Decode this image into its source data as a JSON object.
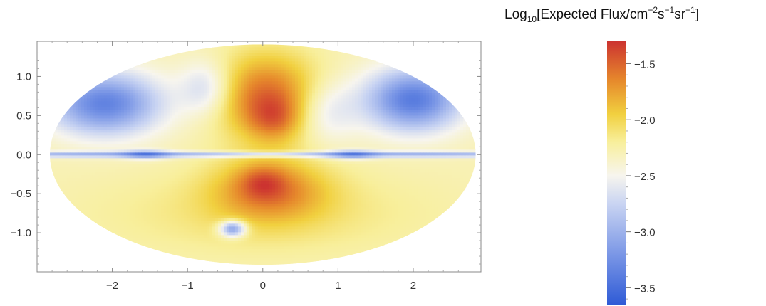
{
  "chart_data": {
    "type": "heatmap",
    "projection": "Mollweide-like ellipse (all-sky map)",
    "title": "",
    "xlabel": "",
    "ylabel": "",
    "xlim": [
      -3.0,
      2.9
    ],
    "ylim": [
      -1.5,
      1.45
    ],
    "x_ticks": [
      -2,
      -1,
      0,
      1,
      2
    ],
    "x_tick_labels": [
      "−2",
      "−1",
      "0",
      "1",
      "2"
    ],
    "y_ticks": [
      1.0,
      0.5,
      0.0,
      -0.5,
      -1.0
    ],
    "y_tick_labels": [
      "1.0",
      "0.5",
      "0.0",
      "−0.5",
      "−1.0"
    ],
    "ellipse": {
      "x_semi_axis": 2.83,
      "y_semi_axis": 1.41,
      "center": [
        0,
        0
      ]
    },
    "grid": false,
    "colorbar": {
      "title_parts": [
        "Log",
        "10",
        "[Expected Flux/cm",
        "−2",
        "s",
        "−1",
        "sr",
        "−1",
        "]"
      ],
      "range": [
        -3.65,
        -1.3
      ],
      "ticks": [
        -1.5,
        -2.0,
        -2.5,
        -3.0,
        -3.5
      ],
      "tick_labels": [
        "−1.5",
        "−2.0",
        "−2.5",
        "−3.0",
        "−3.5"
      ],
      "colormap": [
        {
          "value": -3.65,
          "color": "#2f5bd6"
        },
        {
          "value": -3.2,
          "color": "#7b97e6"
        },
        {
          "value": -2.75,
          "color": "#c9d4f2"
        },
        {
          "value": -2.5,
          "color": "#f7f5ee"
        },
        {
          "value": -2.2,
          "color": "#f8ef9c"
        },
        {
          "value": -1.95,
          "color": "#f1d03f"
        },
        {
          "value": -1.65,
          "color": "#e6892c"
        },
        {
          "value": -1.3,
          "color": "#cc3330"
        }
      ],
      "legend_placement": "right"
    },
    "features": [
      {
        "name": "baseline",
        "value": -2.3
      },
      {
        "name": "upper-bubble",
        "x": 0.05,
        "y": 0.75,
        "sx": 0.7,
        "sy": 0.55,
        "value": 0.75
      },
      {
        "name": "upper-core",
        "x": 0.15,
        "y": 0.45,
        "sx": 0.35,
        "sy": 0.28,
        "value": 0.35
      },
      {
        "name": "lower-bubble",
        "x": 0.1,
        "y": -0.45,
        "sx": 0.75,
        "sy": 0.4,
        "value": 0.6
      },
      {
        "name": "lower-core",
        "x": 0.0,
        "y": -0.35,
        "sx": 0.3,
        "sy": 0.2,
        "value": 0.3
      },
      {
        "name": "blue-spot",
        "x": -0.4,
        "y": -0.95,
        "sx": 0.17,
        "sy": 0.1,
        "value": -1.0
      },
      {
        "name": "plane-dip",
        "x": 0.0,
        "y": 0.0,
        "sx": 9.0,
        "sy": 0.035,
        "value": -0.7
      },
      {
        "name": "plane-dip-left",
        "x": -1.55,
        "y": 0.0,
        "sx": 0.3,
        "sy": 0.06,
        "value": -0.5
      },
      {
        "name": "plane-dip-right",
        "x": 1.2,
        "y": 0.0,
        "sx": 0.3,
        "sy": 0.06,
        "value": -0.5
      },
      {
        "name": "upper-left-blue",
        "x": -2.1,
        "y": 0.65,
        "sx": 0.75,
        "sy": 0.4,
        "value": -1.05
      },
      {
        "name": "upper-right-blue",
        "x": 2.0,
        "y": 0.7,
        "sx": 0.65,
        "sy": 0.4,
        "value": -1.1
      },
      {
        "name": "upper-left-white",
        "x": -0.75,
        "y": 0.85,
        "sx": 0.35,
        "sy": 0.35,
        "value": -0.45
      },
      {
        "name": "upper-right-white",
        "x": 0.85,
        "y": 0.55,
        "sx": 0.4,
        "sy": 0.4,
        "value": -0.35
      },
      {
        "name": "lower-yellow",
        "x": 0.0,
        "y": -0.75,
        "sx": 2.2,
        "sy": 0.55,
        "value": 0.2
      }
    ]
  }
}
